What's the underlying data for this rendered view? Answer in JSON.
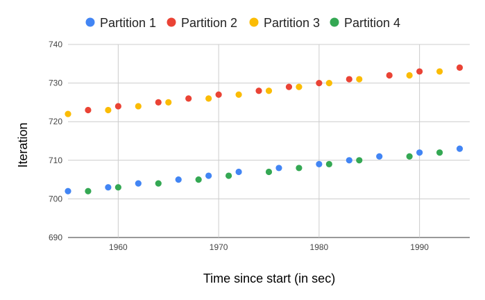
{
  "chart_data": {
    "type": "scatter",
    "title": "",
    "xlabel": "Time since start (in sec)",
    "ylabel": "Iteration",
    "xlim": [
      1955,
      1995
    ],
    "ylim": [
      690,
      740
    ],
    "x_ticks": [
      1960,
      1970,
      1980,
      1990
    ],
    "y_ticks": [
      690,
      700,
      710,
      720,
      730,
      740
    ],
    "grid": true,
    "legend_position": "top",
    "series": [
      {
        "name": "Partition 1",
        "color": "#4285f4",
        "points": [
          [
            1955,
            702
          ],
          [
            1959,
            703
          ],
          [
            1962,
            704
          ],
          [
            1966,
            705
          ],
          [
            1969,
            706
          ],
          [
            1972,
            707
          ],
          [
            1976,
            708
          ],
          [
            1980,
            709
          ],
          [
            1983,
            710
          ],
          [
            1986,
            711
          ],
          [
            1990,
            712
          ],
          [
            1994,
            713
          ]
        ]
      },
      {
        "name": "Partition 2",
        "color": "#ea4335",
        "points": [
          [
            1957,
            723
          ],
          [
            1960,
            724
          ],
          [
            1964,
            725
          ],
          [
            1967,
            726
          ],
          [
            1970,
            727
          ],
          [
            1974,
            728
          ],
          [
            1977,
            729
          ],
          [
            1980,
            730
          ],
          [
            1983,
            731
          ],
          [
            1987,
            732
          ],
          [
            1990,
            733
          ],
          [
            1994,
            734
          ]
        ]
      },
      {
        "name": "Partition 3",
        "color": "#fbbc04",
        "points": [
          [
            1955,
            722
          ],
          [
            1959,
            723
          ],
          [
            1962,
            724
          ],
          [
            1965,
            725
          ],
          [
            1969,
            726
          ],
          [
            1972,
            727
          ],
          [
            1975,
            728
          ],
          [
            1978,
            729
          ],
          [
            1981,
            730
          ],
          [
            1984,
            731
          ],
          [
            1989,
            732
          ],
          [
            1992,
            733
          ]
        ]
      },
      {
        "name": "Partition 4",
        "color": "#34a853",
        "points": [
          [
            1957,
            702
          ],
          [
            1960,
            703
          ],
          [
            1964,
            704
          ],
          [
            1968,
            705
          ],
          [
            1971,
            706
          ],
          [
            1975,
            707
          ],
          [
            1978,
            708
          ],
          [
            1981,
            709
          ],
          [
            1984,
            710
          ],
          [
            1989,
            711
          ],
          [
            1992,
            712
          ]
        ]
      }
    ]
  }
}
